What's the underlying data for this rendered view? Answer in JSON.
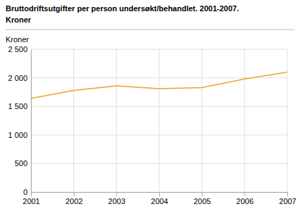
{
  "chart_data": {
    "type": "line",
    "title": "Bruttodriftsutgifter per person undersøkt/behandlet. 2001-2007.",
    "subtitle": "Kroner",
    "ylabel": "Kroner",
    "x": [
      2001,
      2002,
      2003,
      2004,
      2005,
      2006,
      2007
    ],
    "values": [
      1640,
      1780,
      1860,
      1810,
      1830,
      1980,
      2100
    ],
    "color": "#f0a030",
    "xlim": [
      2001,
      2007
    ],
    "xticks": [
      2001,
      2002,
      2003,
      2004,
      2005,
      2006,
      2007
    ],
    "ylim": [
      0,
      2500
    ],
    "yticks": [
      0,
      500,
      {
        "value": 1000,
        "label": "1 000"
      },
      {
        "value": 1500,
        "label": "1 500"
      },
      {
        "value": 2000,
        "label": "2 000"
      },
      {
        "value": 2500,
        "label": "2 500"
      }
    ],
    "grid": true
  }
}
